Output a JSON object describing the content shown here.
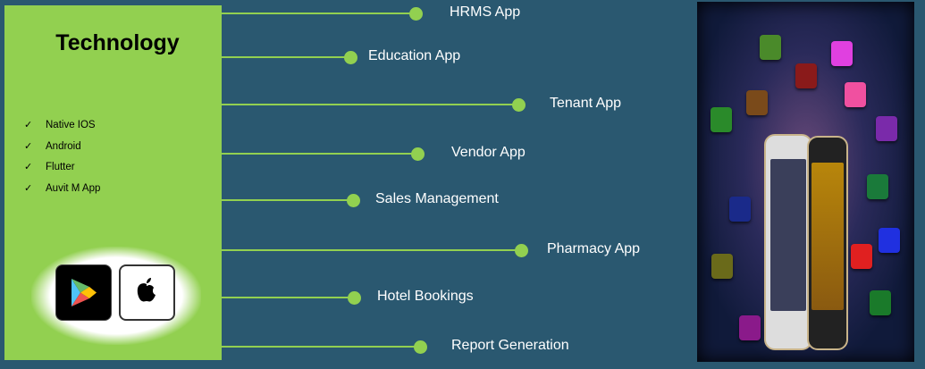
{
  "technology": {
    "title": "Technology",
    "items": [
      "Native IOS",
      "Android",
      "Flutter",
      "Auvit M App"
    ],
    "check_icon": "✓",
    "stores": [
      "google-play-icon",
      "apple-icon"
    ]
  },
  "apps": [
    {
      "label": "HRMS App"
    },
    {
      "label": "Education App"
    },
    {
      "label": "Tenant App"
    },
    {
      "label": "Vendor App"
    },
    {
      "label": "Sales Management"
    },
    {
      "label": "Pharmacy App"
    },
    {
      "label": "Hotel Bookings"
    },
    {
      "label": "Report Generation"
    }
  ],
  "colors": {
    "accent": "#92d050",
    "background": "#2a5870"
  }
}
